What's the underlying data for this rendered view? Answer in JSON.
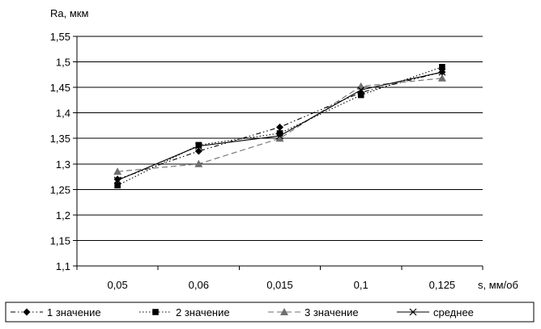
{
  "chart_data": {
    "type": "line",
    "title": "",
    "xlabel": "s, мм/об",
    "ylabel": "Ra, мкм",
    "categories": [
      "0,05",
      "0,06",
      "0,015",
      "0,1",
      "0,125"
    ],
    "ylim": [
      1.1,
      1.55
    ],
    "y_ticks": [
      "1,1",
      "1,15",
      "1,2",
      "1,25",
      "1,3",
      "1,35",
      "1,4",
      "1,45",
      "1,5",
      "1,55"
    ],
    "grid": "horizontal",
    "legend_position": "bottom",
    "series": [
      {
        "name": "1 значение",
        "values": [
          1.27,
          1.325,
          1.372,
          1.44,
          1.48
        ],
        "marker": "diamond",
        "dash": "dash-dot-dot",
        "color": "#000000"
      },
      {
        "name": "2 значение",
        "values": [
          1.258,
          1.337,
          1.36,
          1.435,
          1.49
        ],
        "marker": "square",
        "dash": "dotted",
        "color": "#000000"
      },
      {
        "name": "3 значение",
        "values": [
          1.285,
          1.3,
          1.35,
          1.452,
          1.468
        ],
        "marker": "triangle",
        "dash": "dashed",
        "color": "#6e6e6e"
      },
      {
        "name": "среднее",
        "values": [
          1.268,
          1.335,
          1.355,
          1.445,
          1.48
        ],
        "marker": "cross",
        "dash": "solid",
        "color": "#000000"
      }
    ]
  }
}
